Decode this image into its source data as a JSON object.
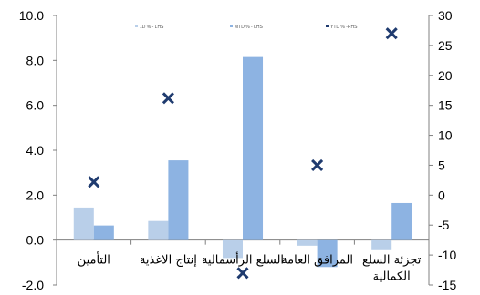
{
  "chart_data": {
    "type": "bar",
    "categories": [
      "التأمين",
      "إنتاج الاغذية",
      "السلع الرأسمالية",
      "المرافق العامة",
      "تجزئة السلع الكمالية"
    ],
    "series": [
      {
        "name": "1D % - LHS",
        "axis": "left",
        "kind": "bar",
        "color": "#b9cfe9",
        "values": [
          1.45,
          0.85,
          -0.8,
          -0.25,
          -0.45
        ]
      },
      {
        "name": "MTD % - LHS",
        "axis": "left",
        "kind": "bar",
        "color": "#8db3e2",
        "values": [
          0.65,
          3.55,
          8.15,
          -1.2,
          1.65
        ]
      },
      {
        "name": "YTD % -RHS",
        "axis": "right",
        "kind": "marker",
        "marker": "x",
        "color": "#1f3b6f",
        "values": [
          2.2,
          16.2,
          -13.0,
          5.0,
          27.0
        ]
      }
    ],
    "left_axis": {
      "min": -2,
      "max": 10,
      "ticks": [
        "-2.0",
        "0.0",
        "2.0",
        "4.0",
        "6.0",
        "8.0",
        "10.0"
      ]
    },
    "right_axis": {
      "min": -15,
      "max": 30,
      "ticks": [
        "-15",
        "-10",
        "-5",
        "0",
        "5",
        "10",
        "15",
        "20",
        "25",
        "30"
      ]
    },
    "legend": {
      "position": "top",
      "items": [
        "1D % - LHS",
        "MTD % - LHS",
        "YTD % -RHS"
      ]
    },
    "grid": false
  }
}
